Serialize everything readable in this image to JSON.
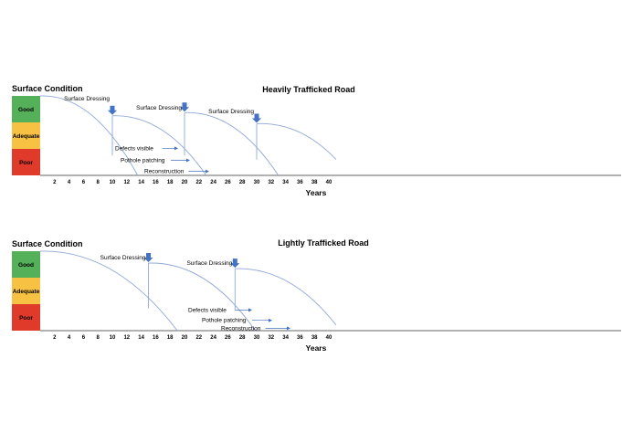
{
  "colors": {
    "good": "#55b05a",
    "adequate": "#f7c244",
    "poor": "#e03a2a",
    "curve": "#8fa8d8",
    "arrow": "#4472c4"
  },
  "chart_data": [
    {
      "type": "line",
      "title": "Heavily Trafficked Road",
      "ylabel": "Surface Condition",
      "xlabel": "Years",
      "xlim": [
        0,
        41
      ],
      "xticks": [
        "2",
        "4",
        "6",
        "8",
        "10",
        "12",
        "14",
        "16",
        "18",
        "20",
        "22",
        "24",
        "26",
        "28",
        "30",
        "32",
        "34",
        "36",
        "38",
        "40"
      ],
      "condition_bands": [
        "Good",
        "Adequate",
        "Poor"
      ],
      "deterioration_curves": [
        {
          "x": [
            0,
            13.5
          ],
          "y": [
            1.0,
            0.0
          ]
        },
        {
          "x": [
            10,
            23
          ],
          "y": [
            0.75,
            0.0
          ]
        },
        {
          "x": [
            20,
            33
          ],
          "y": [
            0.79,
            0.0
          ]
        },
        {
          "x": [
            30,
            41
          ],
          "y": [
            0.65,
            0.2
          ]
        }
      ],
      "surface_dressing_events": [
        {
          "x": 10,
          "label": "Surface Dressing",
          "from": 0.25,
          "to": 0.75
        },
        {
          "x": 20,
          "label": "Surface Dressing",
          "from": 0.25,
          "to": 0.79
        },
        {
          "x": 30,
          "label": "Surface Dressing",
          "from": 0.2,
          "to": 0.65
        }
      ],
      "annotations": [
        {
          "label": "Defects visible",
          "y": 0.34
        },
        {
          "label": "Pothole patching",
          "y": 0.19
        },
        {
          "label": "Reconstruction",
          "y": 0.05
        }
      ]
    },
    {
      "type": "line",
      "title": "Lightly Trafficked Road",
      "ylabel": "Surface Condition",
      "xlabel": "Years",
      "xlim": [
        0,
        41
      ],
      "xticks": [
        "2",
        "4",
        "6",
        "8",
        "10",
        "12",
        "14",
        "16",
        "18",
        "20",
        "22",
        "24",
        "26",
        "28",
        "30",
        "32",
        "34",
        "36",
        "38",
        "40"
      ],
      "condition_bands": [
        "Good",
        "Adequate",
        "Poor"
      ],
      "deterioration_curves": [
        {
          "x": [
            0,
            19
          ],
          "y": [
            1.0,
            0.0
          ]
        },
        {
          "x": [
            15,
            29.8
          ],
          "y": [
            0.85,
            0.0
          ]
        },
        {
          "x": [
            27,
            41
          ],
          "y": [
            0.78,
            0.07
          ]
        }
      ],
      "surface_dressing_events": [
        {
          "x": 15,
          "label": "Surface Dressing",
          "from": 0.28,
          "to": 0.85
        },
        {
          "x": 27,
          "label": "Surface Dressing",
          "from": 0.25,
          "to": 0.78
        }
      ],
      "annotations": [
        {
          "label": "Defects visible",
          "y": 0.26
        },
        {
          "label": "Pothole patching",
          "y": 0.13
        },
        {
          "label": "Reconstruction",
          "y": 0.03
        }
      ]
    }
  ]
}
